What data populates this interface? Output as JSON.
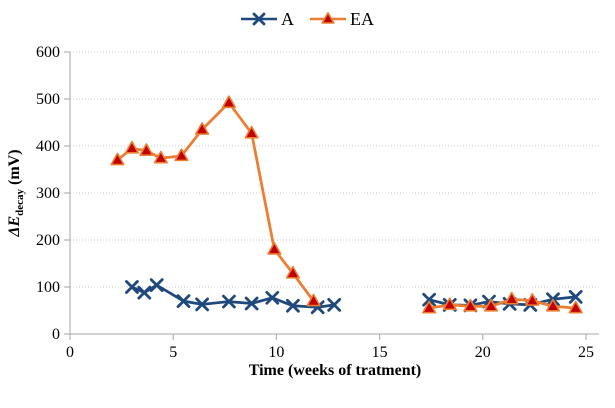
{
  "chart_data": {
    "type": "line",
    "title": "",
    "xlabel": "Time (weeks of tratment)",
    "ylabel": "ΔE_decay (mV)",
    "ylabel_parts": {
      "symbol": "ΔE",
      "subscript": "decay",
      "unit": " (mV)"
    },
    "xlim": [
      0,
      25
    ],
    "ylim": [
      0,
      600
    ],
    "xticks": [
      0,
      5,
      10,
      15,
      20,
      25
    ],
    "yticks": [
      0,
      100,
      200,
      300,
      400,
      500,
      600
    ],
    "grid": "horizontal-dotted",
    "legend_position": "top-center",
    "colors": {
      "axis": "#A6A6A6",
      "gridline": "#C9C9C9",
      "series_a": "#1F497D",
      "series_ea_line": "#ED7D31",
      "series_ea_marker_fill": "#C00000",
      "text": "#000000"
    },
    "series": [
      {
        "name": "A",
        "marker": "x",
        "line_color": "#1F497D",
        "marker_color": "#1F497D",
        "segments": [
          [
            [
              3.0,
              100
            ],
            [
              3.6,
              88
            ],
            [
              4.2,
              104
            ],
            [
              5.5,
              70
            ],
            [
              6.4,
              63
            ],
            [
              7.7,
              69
            ],
            [
              8.8,
              65
            ],
            [
              9.8,
              77
            ],
            [
              10.8,
              60
            ],
            [
              12.0,
              57
            ],
            [
              12.8,
              62
            ]
          ],
          [
            [
              17.4,
              73
            ],
            [
              18.4,
              62
            ],
            [
              19.4,
              61
            ],
            [
              20.3,
              69
            ],
            [
              21.3,
              64
            ],
            [
              22.3,
              62
            ],
            [
              23.4,
              74
            ],
            [
              24.5,
              79
            ]
          ]
        ]
      },
      {
        "name": "EA",
        "marker": "triangle",
        "line_color": "#ED7D31",
        "marker_fill": "#C00000",
        "marker_edge": "#ED7D31",
        "segments": [
          [
            [
              2.3,
              370
            ],
            [
              3.0,
              395
            ],
            [
              3.7,
              390
            ],
            [
              4.4,
              374
            ],
            [
              5.4,
              379
            ],
            [
              6.4,
              435
            ],
            [
              7.7,
              492
            ],
            [
              8.8,
              427
            ],
            [
              9.9,
              180
            ],
            [
              10.8,
              129
            ],
            [
              11.8,
              70
            ]
          ],
          [
            [
              17.4,
              55
            ],
            [
              18.4,
              62
            ],
            [
              19.4,
              59
            ],
            [
              20.4,
              59
            ],
            [
              21.4,
              74
            ],
            [
              22.4,
              71
            ],
            [
              23.4,
              59
            ],
            [
              24.5,
              55
            ]
          ]
        ]
      }
    ]
  }
}
